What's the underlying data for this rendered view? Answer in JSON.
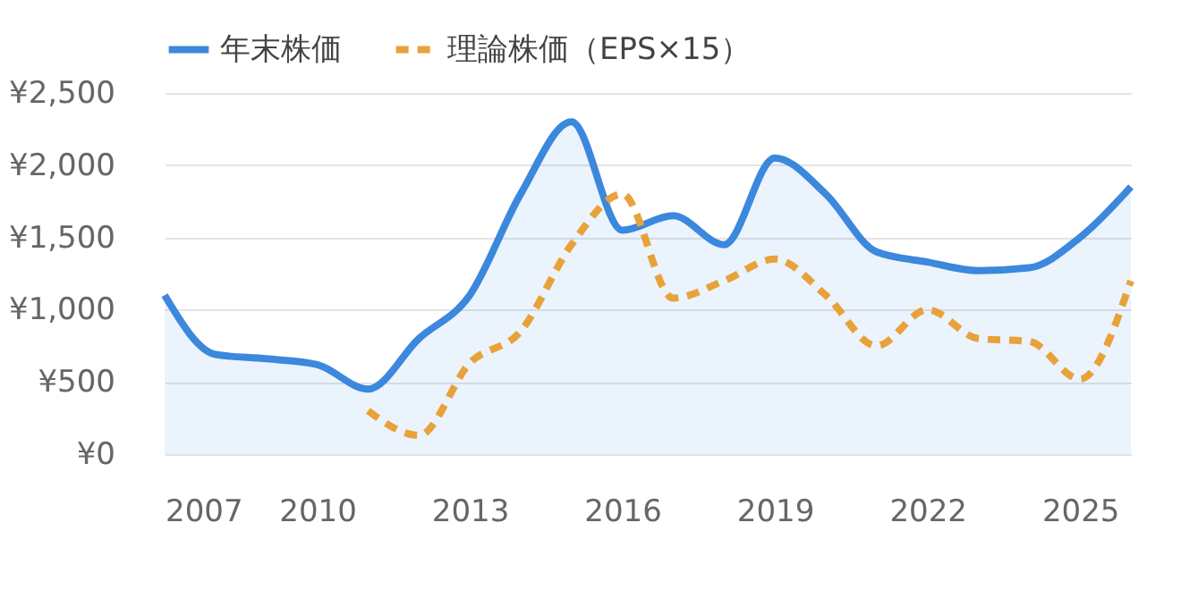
{
  "chart_data": {
    "type": "line",
    "x": [
      2007,
      2008,
      2009,
      2010,
      2011,
      2012,
      2013,
      2014,
      2015,
      2016,
      2017,
      2018,
      2019,
      2020,
      2021,
      2022,
      2023,
      2024,
      2025,
      2026
    ],
    "series": [
      {
        "name": "年末株価",
        "type": "area",
        "color": "#3b88dd",
        "line_style": "solid",
        "values": [
          1100,
          690,
          660,
          620,
          450,
          800,
          1100,
          1800,
          2300,
          1550,
          1650,
          1450,
          2050,
          1800,
          1400,
          1330,
          1270,
          1290,
          1500,
          1850
        ]
      },
      {
        "name": "理論株価（EPS×15）",
        "type": "line",
        "color": "#e8a23a",
        "line_style": "dashed",
        "values": [
          null,
          null,
          null,
          null,
          300,
          130,
          630,
          850,
          1450,
          1800,
          1080,
          1200,
          1350,
          1100,
          750,
          1000,
          800,
          780,
          520,
          1200
        ]
      }
    ],
    "xlim": [
      2007,
      2026
    ],
    "xticks": [
      2007,
      2010,
      2013,
      2016,
      2019,
      2022,
      2025
    ],
    "ylim": [
      0,
      2500
    ],
    "yticks": [
      {
        "value": 0,
        "label": "¥0"
      },
      {
        "value": 500,
        "label": "¥500"
      },
      {
        "value": 1000,
        "label": "¥1,000"
      },
      {
        "value": 1500,
        "label": "¥1,500"
      },
      {
        "value": 2000,
        "label": "¥2,000"
      },
      {
        "value": 2500,
        "label": "¥2,500"
      }
    ],
    "grid": "y",
    "legend": "top left",
    "marker": "none"
  }
}
